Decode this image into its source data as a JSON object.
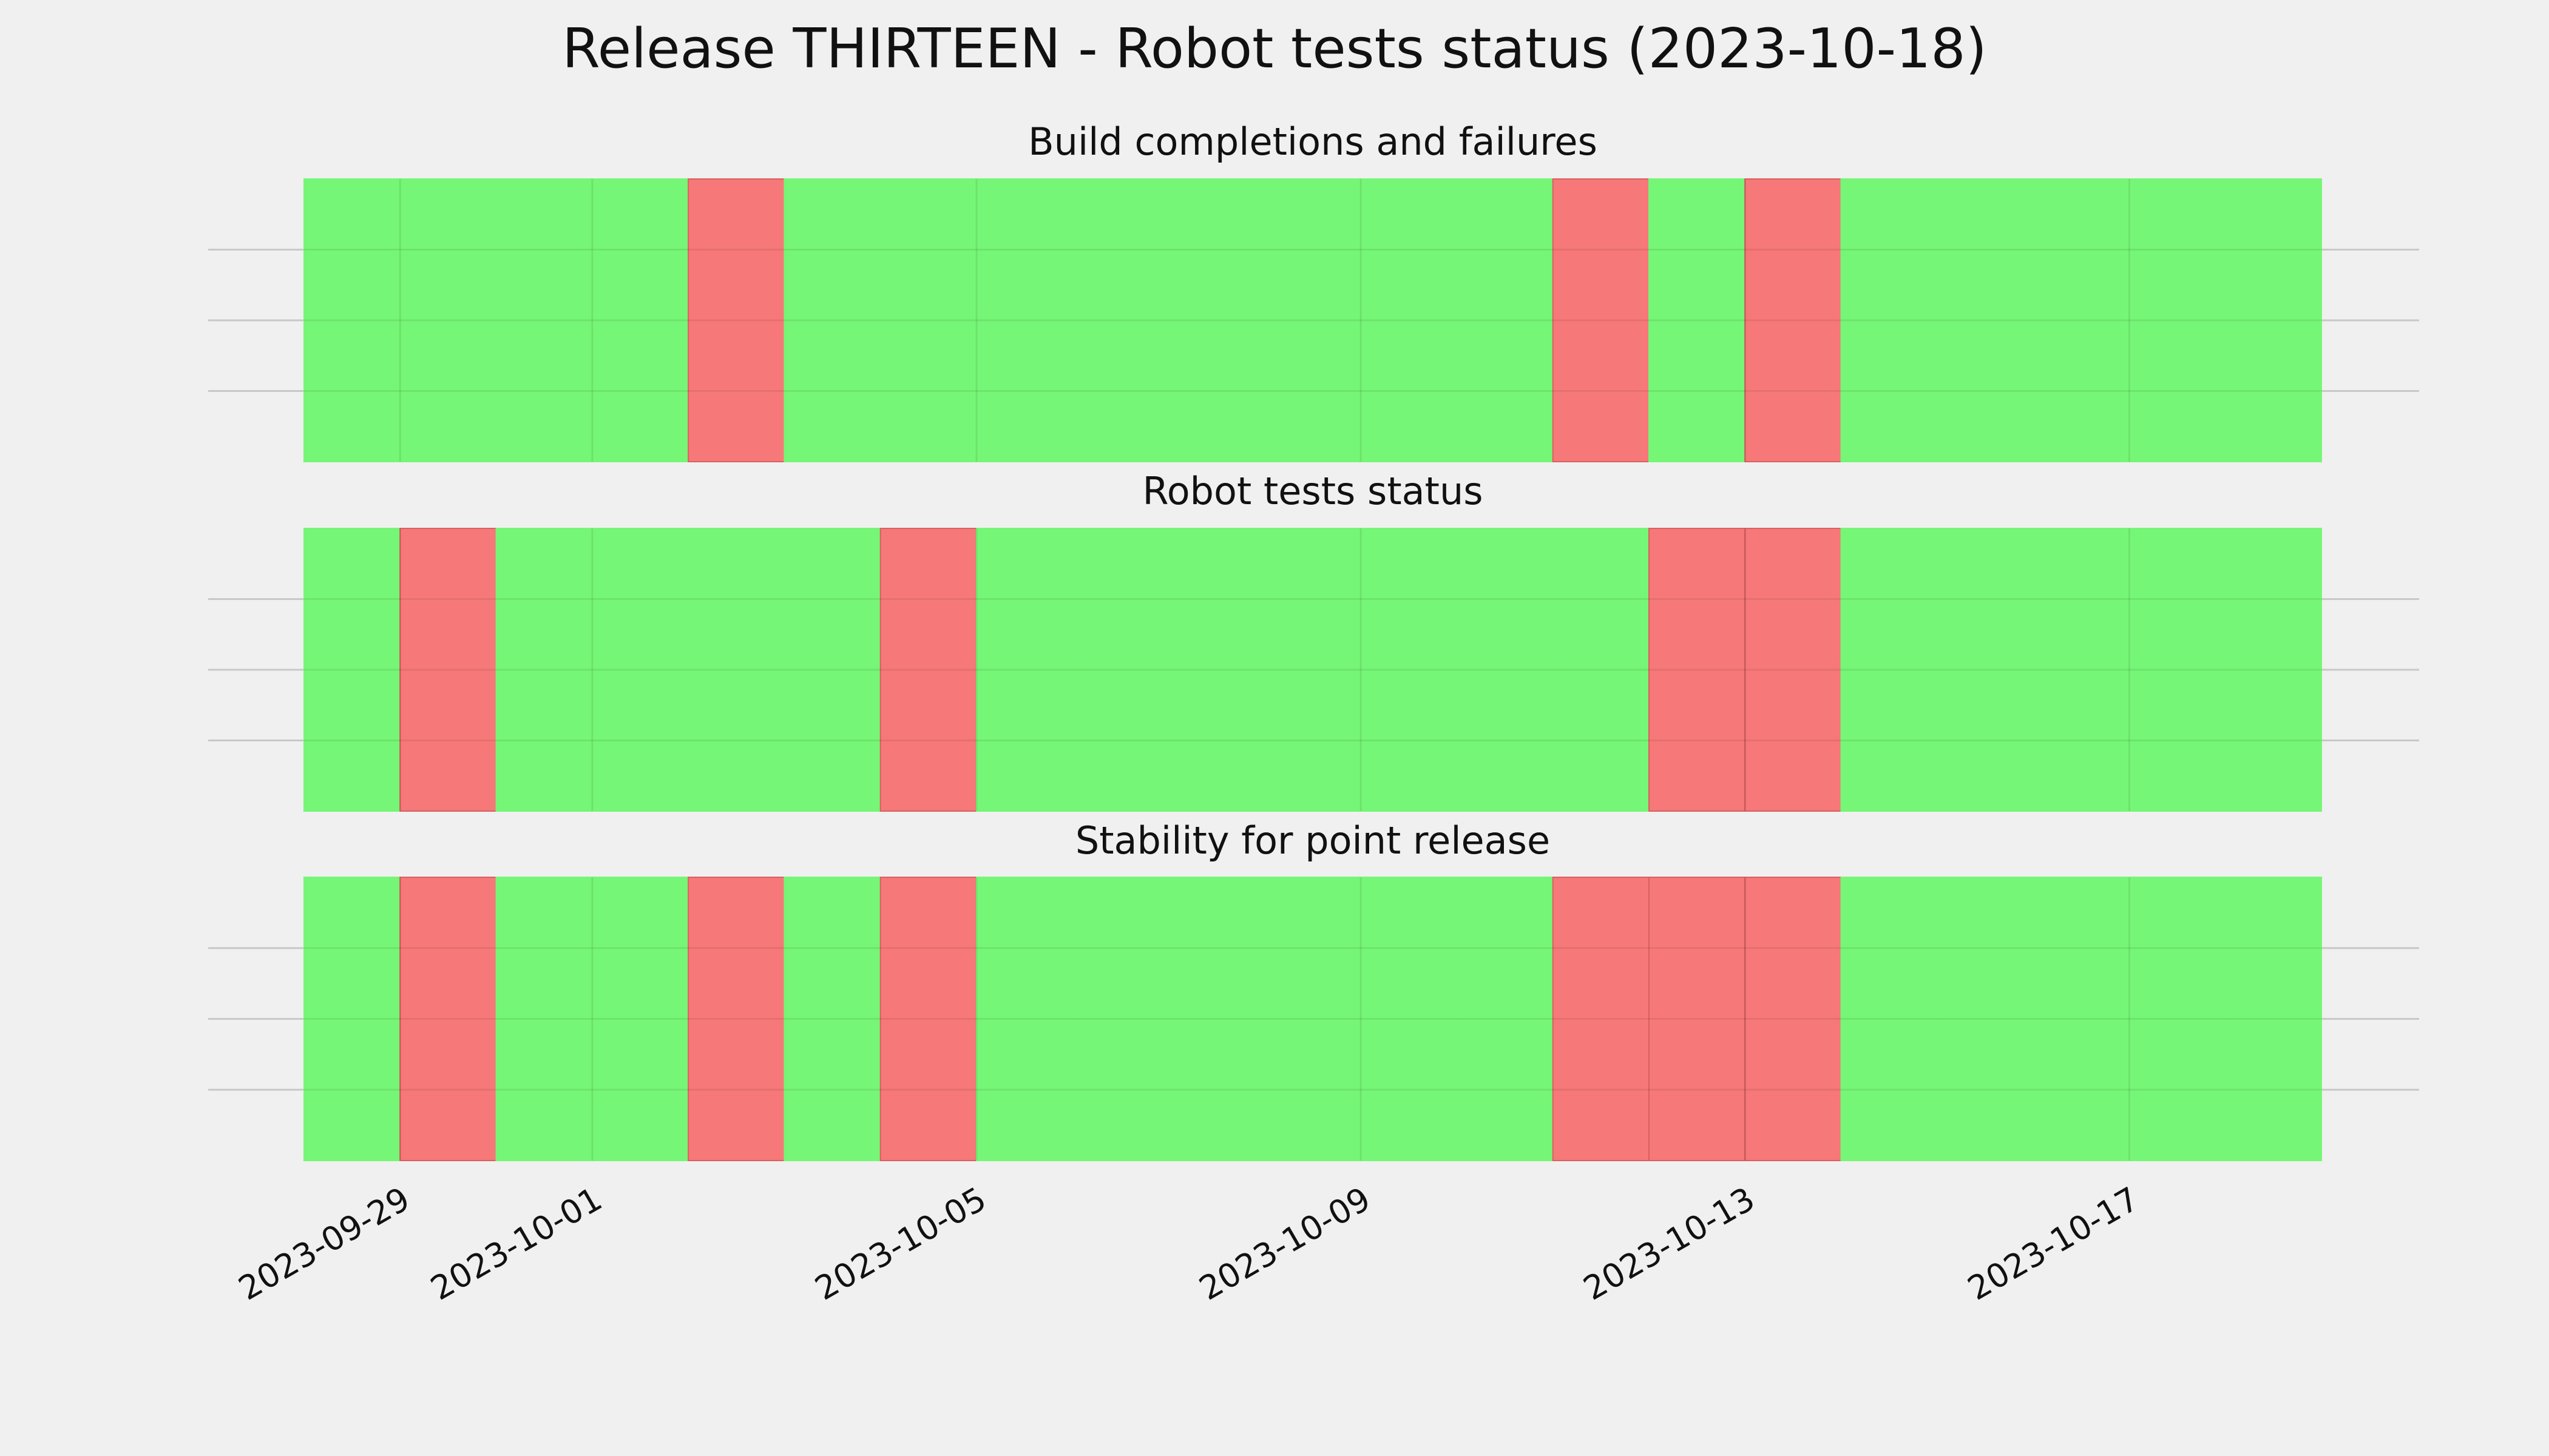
{
  "chart_data": {
    "type": "status",
    "title": "Release THIRTEEN - Robot tests status (2023-10-18)",
    "x": [
      "2023-09-28",
      "2023-09-29",
      "2023-09-30",
      "2023-10-01",
      "2023-10-02",
      "2023-10-03",
      "2023-10-04",
      "2023-10-05",
      "2023-10-06",
      "2023-10-07",
      "2023-10-08",
      "2023-10-09",
      "2023-10-10",
      "2023-10-11",
      "2023-10-12",
      "2023-10-13",
      "2023-10-14",
      "2023-10-15",
      "2023-10-16",
      "2023-10-17",
      "2023-10-18"
    ],
    "xlim": [
      "2023-09-28",
      "2023-10-19"
    ],
    "xticks": [
      "2023-09-29",
      "2023-10-01",
      "2023-10-05",
      "2023-10-09",
      "2023-10-13",
      "2023-10-17"
    ],
    "ylim": [
      0,
      1
    ],
    "yticks": [
      0.25,
      0.5,
      0.75
    ],
    "grid": true,
    "pass_color": "#76f676",
    "fail_color": "#f77878",
    "panels": [
      {
        "title": "Build completions and failures",
        "values": [
          1,
          1,
          1,
          1,
          0,
          1,
          1,
          1,
          1,
          1,
          1,
          1,
          1,
          0,
          1,
          0,
          1,
          1,
          1,
          1,
          1
        ]
      },
      {
        "title": "Robot tests status",
        "values": [
          1,
          0,
          1,
          1,
          1,
          1,
          0,
          1,
          1,
          1,
          1,
          1,
          1,
          1,
          0,
          0,
          1,
          1,
          1,
          1,
          1
        ]
      },
      {
        "title": "Stability for point release",
        "values": [
          1,
          0,
          1,
          1,
          0,
          1,
          0,
          1,
          1,
          1,
          1,
          1,
          1,
          0,
          0,
          0,
          1,
          1,
          1,
          1,
          1
        ]
      }
    ]
  }
}
